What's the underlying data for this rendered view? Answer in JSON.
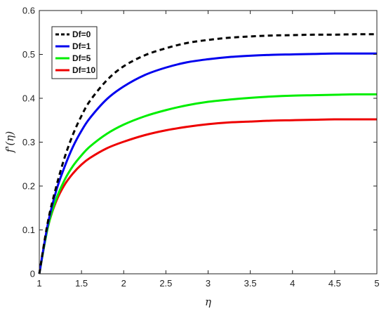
{
  "chart_data": {
    "type": "line",
    "title": "",
    "xlabel": "η",
    "ylabel": "f'(η)",
    "xlim": [
      1,
      5
    ],
    "ylim": [
      0,
      0.6
    ],
    "xticks": [
      "1",
      "1.5",
      "2",
      "2.5",
      "3",
      "3.5",
      "4",
      "4.5",
      "5"
    ],
    "yticks": [
      "0",
      "0.1",
      "0.2",
      "0.3",
      "0.4",
      "0.5",
      "0.6"
    ],
    "grid": false,
    "legend_position": "top-left",
    "x": [
      1,
      1.1,
      1.2,
      1.3,
      1.4,
      1.5,
      1.6,
      1.8,
      2,
      2.25,
      2.5,
      2.75,
      3,
      3.25,
      3.5,
      3.75,
      4,
      4.25,
      4.5,
      4.75,
      5
    ],
    "series": [
      {
        "name": "Df=0",
        "color": "#000000",
        "style": "dashed",
        "values": [
          0,
          0.117,
          0.198,
          0.265,
          0.318,
          0.36,
          0.394,
          0.441,
          0.473,
          0.498,
          0.514,
          0.526,
          0.533,
          0.538,
          0.541,
          0.543,
          0.544,
          0.545,
          0.545,
          0.546,
          0.546
        ]
      },
      {
        "name": "Df=1",
        "color": "#0000ee",
        "style": "solid",
        "values": [
          0,
          0.112,
          0.189,
          0.244,
          0.29,
          0.326,
          0.355,
          0.398,
          0.427,
          0.453,
          0.47,
          0.482,
          0.489,
          0.494,
          0.497,
          0.499,
          0.5,
          0.501,
          0.502,
          0.502,
          0.502
        ]
      },
      {
        "name": "Df=5",
        "color": "#00ee00",
        "style": "solid",
        "values": [
          0,
          0.105,
          0.17,
          0.214,
          0.246,
          0.27,
          0.29,
          0.319,
          0.34,
          0.359,
          0.373,
          0.384,
          0.392,
          0.397,
          0.401,
          0.404,
          0.406,
          0.407,
          0.408,
          0.409,
          0.409
        ]
      },
      {
        "name": "Df=10",
        "color": "#ee0000",
        "style": "solid",
        "values": [
          0,
          0.105,
          0.165,
          0.203,
          0.229,
          0.249,
          0.264,
          0.286,
          0.301,
          0.316,
          0.327,
          0.335,
          0.341,
          0.345,
          0.347,
          0.349,
          0.35,
          0.351,
          0.352,
          0.352,
          0.352
        ]
      }
    ]
  }
}
